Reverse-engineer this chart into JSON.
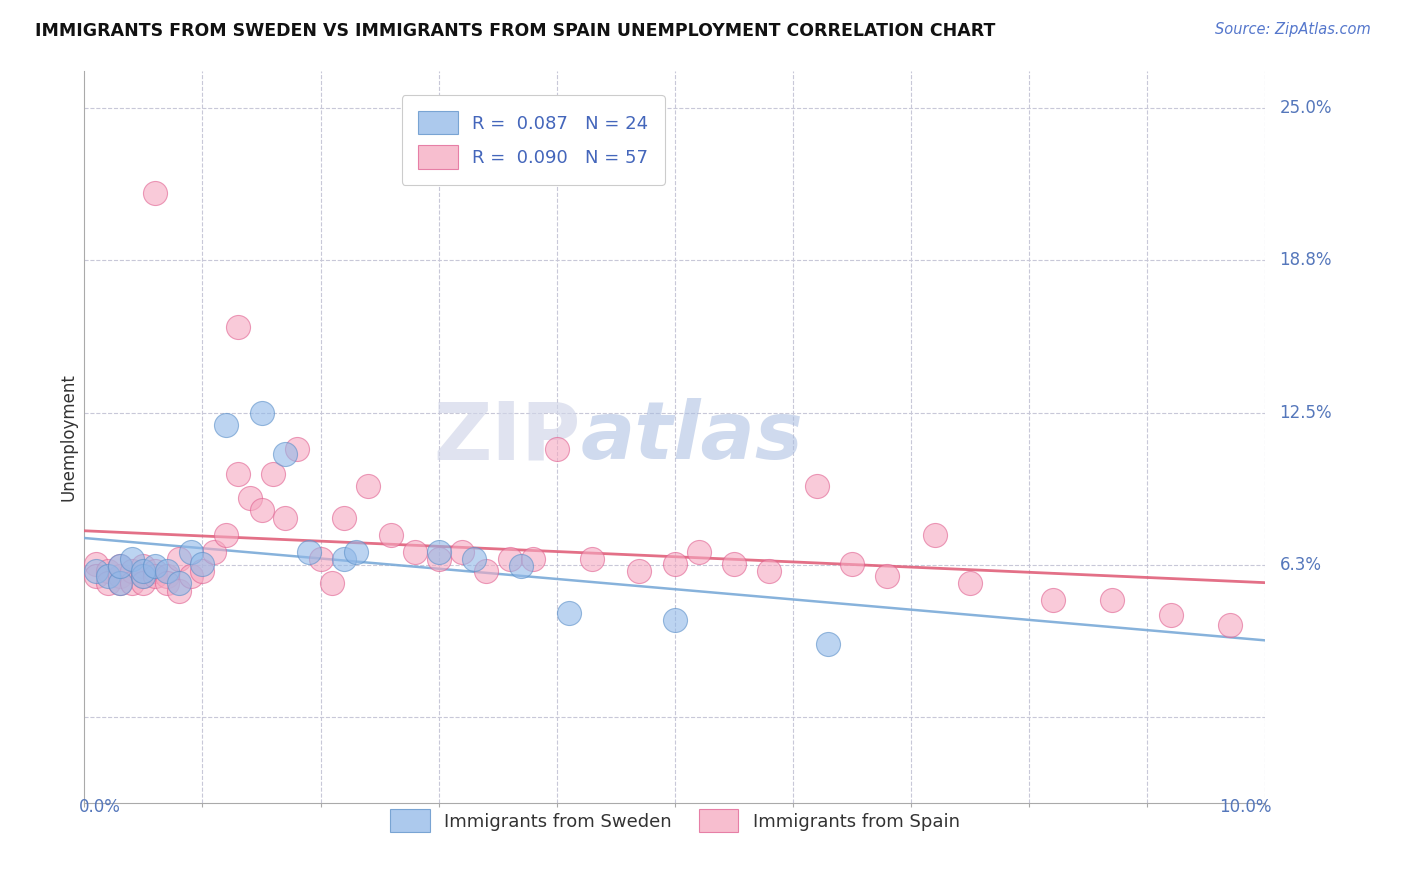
{
  "title": "IMMIGRANTS FROM SWEDEN VS IMMIGRANTS FROM SPAIN UNEMPLOYMENT CORRELATION CHART",
  "source": "Source: ZipAtlas.com",
  "ylabel": "Unemployment",
  "ytick_vals": [
    0.0,
    0.0625,
    0.125,
    0.1875,
    0.25
  ],
  "ytick_labels": [
    "",
    "6.3%",
    "12.5%",
    "18.8%",
    "25.0%"
  ],
  "xmin": 0.0,
  "xmax": 0.1,
  "ymin": -0.035,
  "ymax": 0.265,
  "sweden_color": "#90b8e8",
  "sweden_edge": "#5a8fc8",
  "spain_color": "#f5a8c0",
  "spain_edge": "#e06090",
  "trend_sweden_color": "#7aaad8",
  "trend_spain_color": "#e0607a",
  "legend_r_sweden": "R =  0.087",
  "legend_n_sweden": "N = 24",
  "legend_r_spain": "R =  0.090",
  "legend_n_spain": "N = 57",
  "watermark_zip": "ZIP",
  "watermark_atlas": "atlas",
  "sweden_x": [
    0.001,
    0.002,
    0.003,
    0.003,
    0.004,
    0.005,
    0.005,
    0.006,
    0.007,
    0.008,
    0.009,
    0.01,
    0.012,
    0.015,
    0.017,
    0.019,
    0.022,
    0.023,
    0.03,
    0.033,
    0.037,
    0.041,
    0.05,
    0.063
  ],
  "sweden_y": [
    0.06,
    0.058,
    0.055,
    0.062,
    0.065,
    0.058,
    0.06,
    0.062,
    0.06,
    0.055,
    0.068,
    0.063,
    0.12,
    0.125,
    0.108,
    0.068,
    0.065,
    0.068,
    0.068,
    0.065,
    0.062,
    0.043,
    0.04,
    0.03
  ],
  "spain_x": [
    0.001,
    0.001,
    0.002,
    0.002,
    0.003,
    0.003,
    0.003,
    0.004,
    0.004,
    0.005,
    0.005,
    0.005,
    0.006,
    0.006,
    0.006,
    0.007,
    0.007,
    0.008,
    0.008,
    0.009,
    0.01,
    0.011,
    0.012,
    0.013,
    0.013,
    0.014,
    0.015,
    0.016,
    0.017,
    0.018,
    0.02,
    0.021,
    0.022,
    0.024,
    0.026,
    0.028,
    0.03,
    0.032,
    0.034,
    0.036,
    0.038,
    0.04,
    0.043,
    0.047,
    0.05,
    0.052,
    0.055,
    0.058,
    0.062,
    0.065,
    0.068,
    0.072,
    0.075,
    0.082,
    0.087,
    0.092,
    0.097
  ],
  "spain_y": [
    0.063,
    0.058,
    0.06,
    0.055,
    0.058,
    0.062,
    0.055,
    0.06,
    0.055,
    0.062,
    0.058,
    0.055,
    0.06,
    0.058,
    0.215,
    0.058,
    0.055,
    0.065,
    0.052,
    0.058,
    0.06,
    0.068,
    0.075,
    0.16,
    0.1,
    0.09,
    0.085,
    0.1,
    0.082,
    0.11,
    0.065,
    0.055,
    0.082,
    0.095,
    0.075,
    0.068,
    0.065,
    0.068,
    0.06,
    0.065,
    0.065,
    0.11,
    0.065,
    0.06,
    0.063,
    0.068,
    0.063,
    0.06,
    0.095,
    0.063,
    0.058,
    0.075,
    0.055,
    0.048,
    0.048,
    0.042,
    0.038
  ]
}
